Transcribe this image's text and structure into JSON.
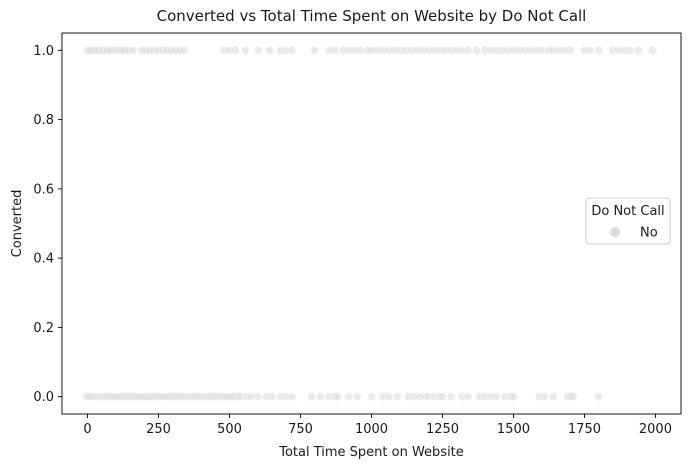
{
  "chart_data": {
    "type": "scatter",
    "title": "Converted vs Total Time Spent on Website by Do Not Call",
    "xlabel": "Total Time Spent on Website",
    "ylabel": "Converted",
    "xlim": [
      -90,
      2090
    ],
    "ylim": [
      -0.05,
      1.05
    ],
    "x_ticks": [
      0,
      250,
      500,
      750,
      1000,
      1250,
      1500,
      1750,
      2000
    ],
    "x_tick_labels": [
      "0",
      "250",
      "500",
      "750",
      "1000",
      "1250",
      "1500",
      "1750",
      "2000"
    ],
    "y_ticks": [
      0.0,
      0.2,
      0.4,
      0.6,
      0.8,
      1.0
    ],
    "y_tick_labels": [
      "0.0",
      "0.2",
      "0.4",
      "0.6",
      "0.8",
      "1.0"
    ],
    "grid": false,
    "legend": {
      "title": "Do Not Call",
      "placement": "center-right",
      "entries": [
        "No"
      ]
    },
    "series": [
      {
        "name": "No",
        "color": "#dcdcdc",
        "points_y1": [
          0,
          5,
          10,
          20,
          30,
          40,
          55,
          70,
          80,
          95,
          105,
          120,
          130,
          145,
          160,
          190,
          205,
          220,
          235,
          250,
          265,
          280,
          295,
          310,
          325,
          340,
          480,
          500,
          520,
          555,
          600,
          640,
          680,
          700,
          720,
          800,
          850,
          870,
          900,
          920,
          940,
          960,
          985,
          1000,
          1020,
          1040,
          1060,
          1080,
          1100,
          1120,
          1140,
          1160,
          1180,
          1200,
          1220,
          1240,
          1260,
          1280,
          1300,
          1320,
          1340,
          1370,
          1400,
          1420,
          1440,
          1460,
          1480,
          1500,
          1520,
          1540,
          1560,
          1580,
          1600,
          1625,
          1640,
          1660,
          1680,
          1700,
          1750,
          1770,
          1800,
          1850,
          1870,
          1890,
          1910,
          1940,
          1990
        ],
        "points_y0": [
          -5,
          0,
          5,
          10,
          20,
          30,
          40,
          50,
          60,
          70,
          80,
          90,
          100,
          110,
          120,
          130,
          140,
          150,
          160,
          170,
          180,
          190,
          200,
          210,
          220,
          230,
          240,
          250,
          260,
          270,
          280,
          290,
          300,
          310,
          320,
          330,
          340,
          350,
          360,
          370,
          380,
          390,
          400,
          410,
          420,
          430,
          440,
          450,
          460,
          470,
          480,
          490,
          500,
          510,
          520,
          530,
          540,
          560,
          575,
          600,
          630,
          650,
          680,
          700,
          720,
          790,
          820,
          850,
          870,
          880,
          920,
          950,
          1000,
          1040,
          1060,
          1090,
          1130,
          1150,
          1170,
          1190,
          1200,
          1220,
          1240,
          1250,
          1280,
          1320,
          1340,
          1380,
          1400,
          1420,
          1440,
          1470,
          1490,
          1500,
          1590,
          1610,
          1640,
          1690,
          1700,
          1710,
          1800
        ]
      }
    ]
  }
}
